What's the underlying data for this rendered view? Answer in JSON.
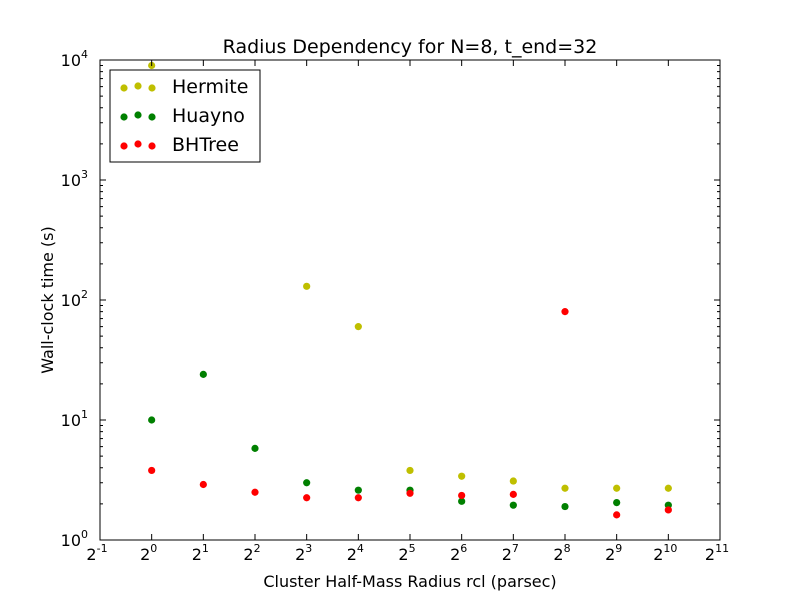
{
  "chart_data": {
    "type": "scatter",
    "title": "Radius Dependency for N=8, t_end=32",
    "xlabel": "Cluster Half-Mass Radius rcl (parsec)",
    "ylabel": "Wall-clock time (s)",
    "x_scale": "log2",
    "y_scale": "log10",
    "xlim": [
      0.5,
      2048
    ],
    "ylim": [
      1,
      10000
    ],
    "x_ticks": [
      {
        "base": "2",
        "exp": "-1"
      },
      {
        "base": "2",
        "exp": "0"
      },
      {
        "base": "2",
        "exp": "1"
      },
      {
        "base": "2",
        "exp": "2"
      },
      {
        "base": "2",
        "exp": "3"
      },
      {
        "base": "2",
        "exp": "4"
      },
      {
        "base": "2",
        "exp": "5"
      },
      {
        "base": "2",
        "exp": "6"
      },
      {
        "base": "2",
        "exp": "7"
      },
      {
        "base": "2",
        "exp": "8"
      },
      {
        "base": "2",
        "exp": "9"
      },
      {
        "base": "2",
        "exp": "10"
      },
      {
        "base": "2",
        "exp": "11"
      }
    ],
    "y_ticks": [
      {
        "base": "10",
        "exp": "0"
      },
      {
        "base": "10",
        "exp": "1"
      },
      {
        "base": "10",
        "exp": "2"
      },
      {
        "base": "10",
        "exp": "3"
      },
      {
        "base": "10",
        "exp": "4"
      }
    ],
    "legend_position": "top-left",
    "grid": false,
    "series": [
      {
        "name": "Hermite",
        "color": "#bfbf00",
        "x": [
          1,
          8,
          16,
          32,
          64,
          128,
          256,
          512,
          1024
        ],
        "y": [
          9000,
          130,
          60,
          3.8,
          3.4,
          3.1,
          2.7,
          2.7,
          2.7
        ]
      },
      {
        "name": "Huayno",
        "color": "#008000",
        "x": [
          1,
          2,
          4,
          8,
          16,
          32,
          64,
          128,
          256,
          512,
          1024
        ],
        "y": [
          10,
          24,
          5.8,
          3.0,
          2.6,
          2.6,
          2.1,
          1.95,
          1.9,
          2.05,
          1.95
        ]
      },
      {
        "name": "BHTree",
        "color": "#ff0000",
        "x": [
          1,
          2,
          4,
          8,
          16,
          32,
          64,
          128,
          256,
          512,
          1024
        ],
        "y": [
          3.8,
          2.9,
          2.5,
          2.25,
          2.25,
          2.45,
          2.35,
          2.4,
          80,
          1.62,
          1.78
        ]
      }
    ]
  }
}
